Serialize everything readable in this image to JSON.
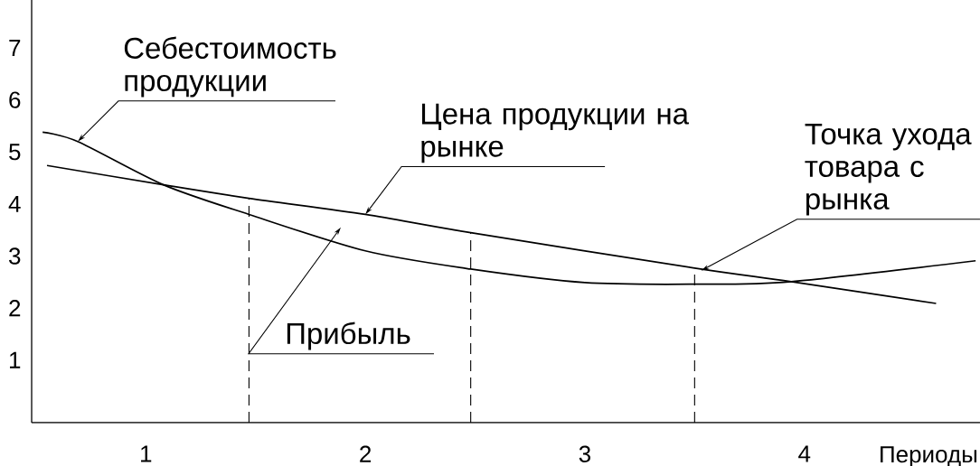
{
  "chart_data": {
    "type": "line",
    "xlabel": "Периоды",
    "xlim": [
      0.48,
      4.8
    ],
    "ylim": [
      -0.2,
      7.92
    ],
    "xticks": [
      1,
      2,
      3,
      4
    ],
    "yticks": [
      1,
      2,
      3,
      4,
      5,
      6,
      7
    ],
    "grid": false,
    "marker": "none",
    "line_style": "solid",
    "series": [
      {
        "name": "Себестоимость продукции",
        "color": "#000000",
        "x": [
          0.53,
          0.69,
          1.08,
          1.47,
          2.0,
          2.48,
          3.0,
          3.5,
          3.94,
          4.78
        ],
        "values": [
          5.38,
          5.2,
          4.37,
          3.8,
          3.1,
          2.75,
          2.49,
          2.46,
          2.51,
          2.91
        ]
      },
      {
        "name": "Цена продукции на рынке",
        "color": "#000000",
        "x": [
          0.55,
          1.08,
          1.47,
          2.0,
          2.48,
          3.5,
          3.94,
          4.6
        ],
        "values": [
          4.74,
          4.37,
          4.11,
          3.8,
          3.45,
          2.77,
          2.51,
          2.09
        ]
      }
    ],
    "annotations": [
      {
        "text": "Точка ухода товара с рынка",
        "x": 3.53,
        "y": 2.72
      },
      "Прибыль"
    ],
    "ref_lines": [
      {
        "axis": "x",
        "value": 1.47,
        "line_style": "dashed"
      },
      {
        "axis": "x",
        "value": 2.48,
        "line_style": "dashed"
      },
      {
        "axis": "x",
        "value": 3.5,
        "line_style": "dashed"
      }
    ]
  }
}
